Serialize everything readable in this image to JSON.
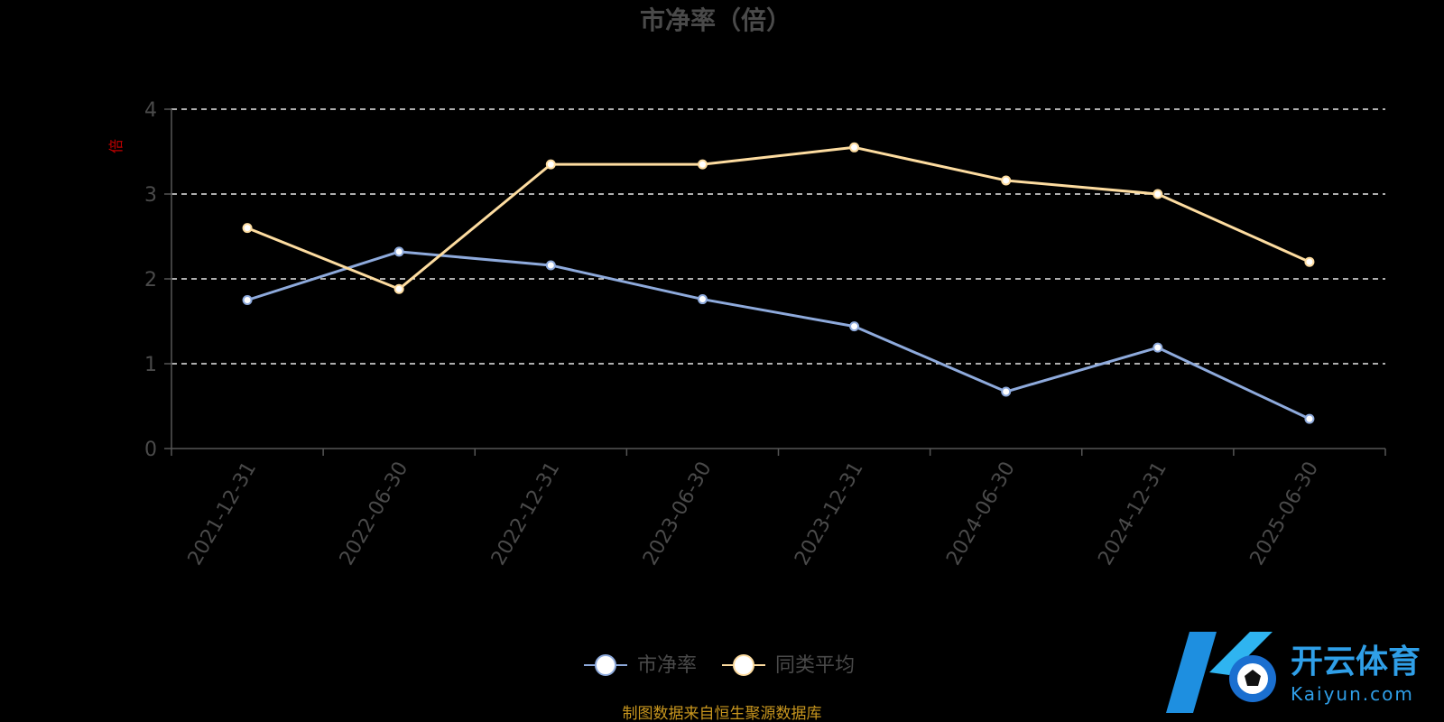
{
  "chart_data": {
    "type": "line",
    "title": "市净率（倍）",
    "ylabel": "倍",
    "xlabel": "",
    "categories": [
      "2021-12-31",
      "2022-06-30",
      "2022-12-31",
      "2023-06-30",
      "2023-12-31",
      "2024-06-30",
      "2024-12-31",
      "2025-06-30"
    ],
    "ylim": [
      0,
      4
    ],
    "yticks": [
      0,
      1,
      2,
      3,
      4
    ],
    "grid": true,
    "legend_position": "bottom",
    "series": [
      {
        "name": "市净率",
        "color": "#8eaadc",
        "values": [
          1.75,
          2.32,
          2.16,
          1.76,
          1.44,
          0.67,
          1.19,
          0.35
        ]
      },
      {
        "name": "同类平均",
        "color": "#fddca0",
        "values": [
          2.6,
          1.88,
          3.35,
          3.35,
          3.55,
          3.16,
          3.0,
          2.2
        ]
      }
    ]
  },
  "source_note": "制图数据来自恒生聚源数据库",
  "logo": {
    "name": "开云体育",
    "sub": "Kaiyun.com"
  }
}
